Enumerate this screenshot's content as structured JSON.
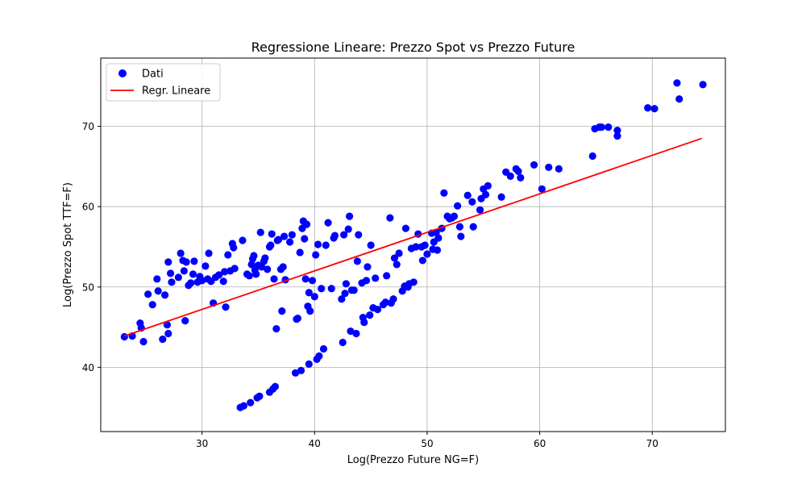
{
  "chart_data": {
    "type": "scatter",
    "title": "Regressione Lineare: Prezzo Spot vs Prezzo Future",
    "xlabel": "Log(Prezzo Future NG=F)",
    "ylabel": "Log(Prezzo Spot TTF=F)",
    "xlim": [
      21,
      76.5
    ],
    "ylim": [
      32,
      78.5
    ],
    "xticks": [
      30,
      40,
      50,
      60,
      70
    ],
    "yticks": [
      40,
      50,
      60,
      70
    ],
    "grid": true,
    "legend_position": "top-left",
    "colors": {
      "points": "#0000ff",
      "line": "#ff0000"
    },
    "series": [
      {
        "name": "Dati",
        "type": "scatter",
        "points": [
          [
            23.1,
            43.8
          ],
          [
            23.8,
            43.9
          ],
          [
            24.5,
            45.5
          ],
          [
            24.6,
            44.9
          ],
          [
            24.8,
            43.2
          ],
          [
            25.2,
            49.1
          ],
          [
            25.6,
            47.8
          ],
          [
            26.0,
            51.0
          ],
          [
            26.1,
            49.5
          ],
          [
            26.5,
            43.5
          ],
          [
            26.7,
            49.0
          ],
          [
            26.9,
            45.3
          ],
          [
            27.0,
            44.2
          ],
          [
            27.0,
            53.1
          ],
          [
            27.2,
            51.7
          ],
          [
            27.3,
            50.6
          ],
          [
            27.9,
            51.2
          ],
          [
            28.1,
            54.2
          ],
          [
            28.3,
            53.3
          ],
          [
            28.4,
            52.0
          ],
          [
            28.5,
            45.8
          ],
          [
            28.6,
            53.1
          ],
          [
            28.8,
            50.2
          ],
          [
            29.0,
            50.5
          ],
          [
            29.2,
            51.6
          ],
          [
            29.3,
            53.2
          ],
          [
            29.6,
            50.6
          ],
          [
            29.8,
            51.3
          ],
          [
            30.0,
            50.8
          ],
          [
            30.3,
            52.6
          ],
          [
            30.5,
            51.0
          ],
          [
            30.6,
            54.2
          ],
          [
            30.8,
            50.7
          ],
          [
            31.0,
            48.0
          ],
          [
            31.2,
            51.2
          ],
          [
            31.5,
            51.5
          ],
          [
            31.9,
            50.7
          ],
          [
            32.0,
            51.9
          ],
          [
            32.1,
            47.5
          ],
          [
            32.3,
            54.0
          ],
          [
            32.5,
            52.0
          ],
          [
            32.7,
            55.4
          ],
          [
            32.8,
            54.9
          ],
          [
            32.9,
            52.3
          ],
          [
            33.4,
            35.0
          ],
          [
            33.6,
            55.8
          ],
          [
            33.7,
            35.2
          ],
          [
            34.0,
            51.6
          ],
          [
            34.2,
            51.4
          ],
          [
            34.3,
            35.6
          ],
          [
            34.4,
            52.8
          ],
          [
            34.5,
            53.5
          ],
          [
            34.6,
            53.9
          ],
          [
            34.7,
            52.1
          ],
          [
            34.8,
            51.6
          ],
          [
            34.9,
            36.2
          ],
          [
            35.0,
            52.7
          ],
          [
            35.1,
            36.4
          ],
          [
            35.2,
            56.8
          ],
          [
            35.3,
            52.5
          ],
          [
            35.5,
            53.2
          ],
          [
            35.6,
            53.6
          ],
          [
            35.8,
            52.2
          ],
          [
            36.0,
            36.9
          ],
          [
            36.0,
            55.0
          ],
          [
            36.1,
            55.2
          ],
          [
            36.2,
            56.6
          ],
          [
            36.3,
            37.3
          ],
          [
            36.4,
            51.0
          ],
          [
            36.5,
            37.6
          ],
          [
            36.6,
            44.8
          ],
          [
            36.7,
            55.8
          ],
          [
            36.8,
            55.9
          ],
          [
            37.0,
            52.2
          ],
          [
            37.1,
            47.0
          ],
          [
            37.2,
            52.5
          ],
          [
            37.3,
            56.3
          ],
          [
            37.4,
            50.9
          ],
          [
            37.8,
            55.6
          ],
          [
            38.0,
            56.5
          ],
          [
            38.3,
            39.3
          ],
          [
            38.4,
            46.0
          ],
          [
            38.5,
            46.1
          ],
          [
            38.7,
            54.3
          ],
          [
            38.8,
            39.6
          ],
          [
            38.9,
            57.3
          ],
          [
            39.0,
            58.2
          ],
          [
            39.1,
            56.0
          ],
          [
            39.2,
            51.0
          ],
          [
            39.3,
            57.8
          ],
          [
            39.4,
            47.6
          ],
          [
            39.5,
            49.3
          ],
          [
            39.5,
            40.4
          ],
          [
            39.6,
            47.0
          ],
          [
            39.8,
            50.8
          ],
          [
            40.0,
            48.8
          ],
          [
            40.1,
            54.0
          ],
          [
            40.2,
            41.0
          ],
          [
            40.3,
            55.3
          ],
          [
            40.4,
            41.4
          ],
          [
            40.6,
            49.8
          ],
          [
            40.8,
            42.3
          ],
          [
            41.0,
            55.2
          ],
          [
            41.2,
            58.0
          ],
          [
            41.5,
            49.8
          ],
          [
            41.7,
            56.1
          ],
          [
            41.8,
            56.4
          ],
          [
            42.4,
            48.5
          ],
          [
            42.5,
            43.1
          ],
          [
            42.6,
            56.5
          ],
          [
            42.7,
            49.2
          ],
          [
            42.8,
            50.4
          ],
          [
            43.0,
            57.2
          ],
          [
            43.1,
            58.8
          ],
          [
            43.2,
            44.5
          ],
          [
            43.3,
            49.6
          ],
          [
            43.5,
            49.6
          ],
          [
            43.7,
            44.2
          ],
          [
            43.8,
            53.2
          ],
          [
            43.9,
            56.5
          ],
          [
            44.2,
            50.5
          ],
          [
            44.3,
            46.2
          ],
          [
            44.4,
            45.6
          ],
          [
            44.6,
            50.8
          ],
          [
            44.7,
            52.5
          ],
          [
            44.9,
            46.5
          ],
          [
            45.0,
            55.2
          ],
          [
            45.2,
            47.4
          ],
          [
            45.4,
            51.1
          ],
          [
            45.6,
            47.2
          ],
          [
            46.1,
            47.8
          ],
          [
            46.3,
            48.1
          ],
          [
            46.4,
            51.4
          ],
          [
            46.7,
            58.6
          ],
          [
            46.8,
            48.0
          ],
          [
            47.0,
            48.5
          ],
          [
            47.1,
            53.6
          ],
          [
            47.3,
            52.8
          ],
          [
            47.5,
            54.2
          ],
          [
            47.8,
            49.5
          ],
          [
            48.0,
            50.1
          ],
          [
            48.1,
            57.3
          ],
          [
            48.3,
            50.0
          ],
          [
            48.4,
            50.4
          ],
          [
            48.6,
            54.8
          ],
          [
            48.8,
            50.6
          ],
          [
            49.0,
            55.0
          ],
          [
            49.2,
            56.6
          ],
          [
            49.5,
            55.0
          ],
          [
            49.6,
            53.3
          ],
          [
            49.8,
            55.2
          ],
          [
            50.0,
            54.1
          ],
          [
            50.4,
            56.7
          ],
          [
            50.5,
            54.7
          ],
          [
            50.6,
            55.6
          ],
          [
            50.8,
            56.8
          ],
          [
            50.9,
            54.6
          ],
          [
            51.0,
            56.1
          ],
          [
            51.3,
            57.3
          ],
          [
            51.5,
            61.7
          ],
          [
            51.8,
            58.8
          ],
          [
            52.0,
            58.5
          ],
          [
            52.2,
            58.6
          ],
          [
            52.4,
            58.8
          ],
          [
            52.7,
            60.1
          ],
          [
            52.9,
            57.5
          ],
          [
            53.0,
            56.3
          ],
          [
            53.6,
            61.4
          ],
          [
            54.0,
            60.6
          ],
          [
            54.1,
            57.5
          ],
          [
            54.7,
            59.6
          ],
          [
            54.8,
            61.0
          ],
          [
            55.0,
            62.2
          ],
          [
            55.2,
            61.5
          ],
          [
            55.4,
            62.6
          ],
          [
            56.6,
            61.2
          ],
          [
            57.0,
            64.3
          ],
          [
            57.4,
            63.8
          ],
          [
            57.9,
            64.7
          ],
          [
            58.1,
            64.4
          ],
          [
            58.3,
            63.6
          ],
          [
            59.5,
            65.2
          ],
          [
            60.2,
            62.2
          ],
          [
            60.8,
            64.9
          ],
          [
            61.7,
            64.7
          ],
          [
            64.7,
            66.3
          ],
          [
            64.9,
            69.7
          ],
          [
            65.3,
            69.9
          ],
          [
            65.5,
            69.9
          ],
          [
            66.1,
            69.9
          ],
          [
            66.9,
            69.5
          ],
          [
            66.9,
            68.8
          ],
          [
            69.6,
            72.3
          ],
          [
            70.2,
            72.2
          ],
          [
            72.2,
            75.4
          ],
          [
            72.4,
            73.4
          ],
          [
            74.5,
            75.2
          ]
        ]
      },
      {
        "name": "Regr. Lineare",
        "type": "line",
        "points": [
          [
            23.1,
            43.9
          ],
          [
            74.4,
            68.5
          ]
        ]
      }
    ]
  }
}
